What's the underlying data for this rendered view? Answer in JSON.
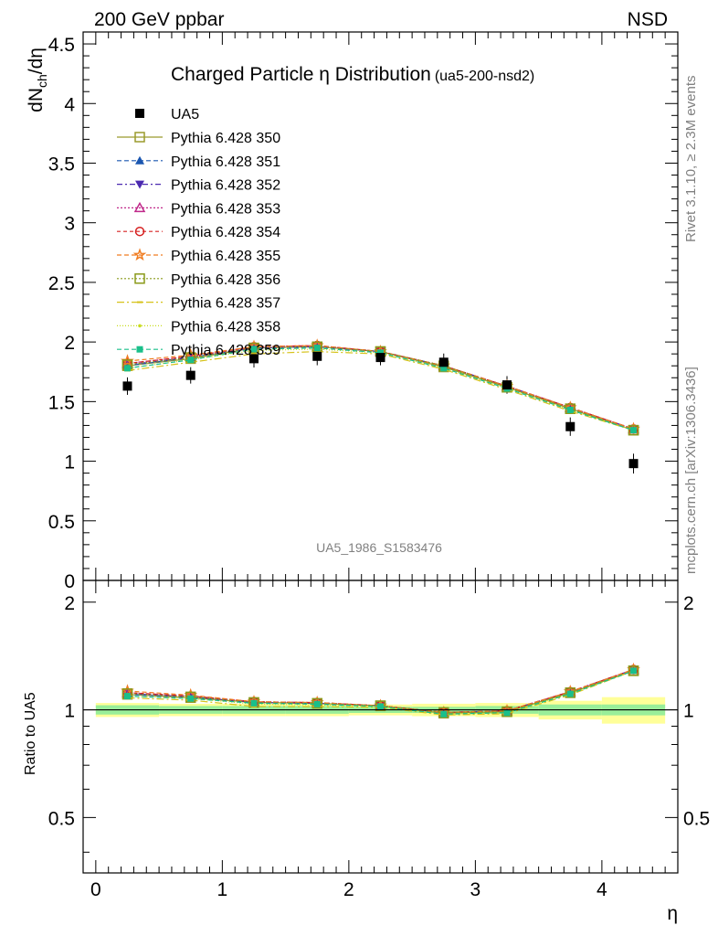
{
  "header": {
    "left": "200 GeV ppbar",
    "right": "NSD"
  },
  "side": {
    "rivet": "Rivet 3.1.10, ≥ 2.3M events",
    "mcplots": "mcplots.cern.ch [arXiv:1306.3436]"
  },
  "chart_data": {
    "type": "scatter",
    "title": "Charged Particle η Distribution",
    "subtitle": "(ua5-200-nsd2)",
    "watermark": "UA5_1986_S1583476",
    "xlabel": "η",
    "ylabel": "dN_ch/dη",
    "ratio_ylabel": "Ratio to UA5",
    "xlim": [
      -0.1,
      4.6
    ],
    "ylim": [
      0,
      4.6
    ],
    "ratio_ylim": [
      0.35,
      2.3
    ],
    "x_ticks": [
      "0",
      "1",
      "2",
      "3",
      "4"
    ],
    "y_ticks": [
      "0",
      "0.5",
      "1",
      "1.5",
      "2",
      "2.5",
      "3",
      "3.5",
      "4",
      "4.5"
    ],
    "ratio_ticks_left": [
      "0.5",
      "1",
      "2"
    ],
    "ratio_ticks_right": [
      "0.5",
      "1",
      "2"
    ],
    "x": [
      0.25,
      0.75,
      1.25,
      1.75,
      2.25,
      2.75,
      3.25,
      3.75,
      4.25
    ],
    "bin_edges": [
      0,
      0.5,
      1,
      1.5,
      2,
      2.5,
      3,
      3.5,
      4,
      4.5
    ],
    "data": {
      "name": "UA5",
      "values": [
        1.63,
        1.72,
        1.86,
        1.88,
        1.87,
        1.83,
        1.64,
        1.29,
        0.98
      ],
      "rel_err_inner": [
        0.03,
        0.025,
        0.025,
        0.025,
        0.02,
        0.02,
        0.025,
        0.035,
        0.035
      ],
      "rel_err_outer": [
        0.045,
        0.04,
        0.04,
        0.04,
        0.035,
        0.04,
        0.045,
        0.06,
        0.085
      ]
    },
    "series": [
      {
        "name": "Pythia 6.428 350",
        "color": "#9a9a2c",
        "dash": "",
        "marker": "open-square",
        "values": [
          1.8,
          1.86,
          1.95,
          1.96,
          1.92,
          1.79,
          1.62,
          1.44,
          1.26
        ]
      },
      {
        "name": "Pythia 6.428 351",
        "color": "#1a56b0",
        "dash": "5,3",
        "marker": "triangle-up",
        "values": [
          1.8,
          1.87,
          1.95,
          1.96,
          1.92,
          1.8,
          1.63,
          1.45,
          1.27
        ]
      },
      {
        "name": "Pythia 6.428 352",
        "color": "#4b2ab0",
        "dash": "6,3,2,3",
        "marker": "triangle-down",
        "values": [
          1.81,
          1.87,
          1.95,
          1.96,
          1.92,
          1.8,
          1.63,
          1.45,
          1.27
        ]
      },
      {
        "name": "Pythia 6.428 353",
        "color": "#c0288a",
        "dash": "2,2",
        "marker": "open-triangle",
        "values": [
          1.82,
          1.88,
          1.96,
          1.97,
          1.92,
          1.8,
          1.63,
          1.45,
          1.27
        ]
      },
      {
        "name": "Pythia 6.428 354",
        "color": "#d62020",
        "dash": "4,3",
        "marker": "open-circle",
        "values": [
          1.82,
          1.88,
          1.96,
          1.97,
          1.92,
          1.8,
          1.63,
          1.45,
          1.27
        ]
      },
      {
        "name": "Pythia 6.428 355",
        "color": "#f07c20",
        "dash": "5,3",
        "marker": "open-star",
        "values": [
          1.84,
          1.89,
          1.96,
          1.97,
          1.92,
          1.8,
          1.63,
          1.45,
          1.27
        ]
      },
      {
        "name": "Pythia 6.428 356",
        "color": "#8a9a1a",
        "dash": "2,2",
        "marker": "open-square",
        "values": [
          1.81,
          1.87,
          1.95,
          1.96,
          1.92,
          1.8,
          1.62,
          1.44,
          1.26
        ]
      },
      {
        "name": "Pythia 6.428 357",
        "color": "#d6c21a",
        "dash": "8,3,2,3",
        "marker": "dash",
        "values": [
          1.76,
          1.83,
          1.9,
          1.92,
          1.9,
          1.77,
          1.6,
          1.42,
          1.26
        ]
      },
      {
        "name": "Pythia 6.428 358",
        "color": "#c8dc1a",
        "dash": "1,2",
        "marker": "dot",
        "values": [
          1.78,
          1.85,
          1.93,
          1.94,
          1.91,
          1.78,
          1.61,
          1.43,
          1.26
        ]
      },
      {
        "name": "Pythia 6.428 359",
        "color": "#1abf8a",
        "dash": "5,3",
        "marker": "filled-square",
        "values": [
          1.78,
          1.85,
          1.94,
          1.95,
          1.91,
          1.78,
          1.61,
          1.43,
          1.26
        ]
      }
    ]
  }
}
